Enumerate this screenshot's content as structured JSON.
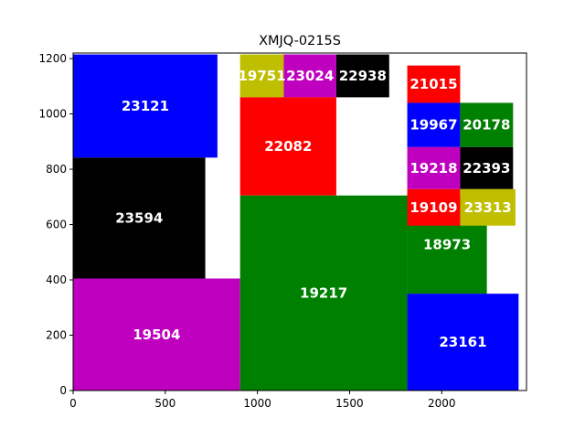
{
  "chart_data": {
    "type": "treemap",
    "title": "XMJQ-0215S",
    "xlabel": "",
    "ylabel": "",
    "xlim": [
      0,
      2460
    ],
    "ylim": [
      0,
      1220
    ],
    "xticks": [
      0,
      500,
      1000,
      1500,
      2000
    ],
    "yticks": [
      0,
      200,
      400,
      600,
      800,
      1000,
      1200
    ],
    "grid": false,
    "colors": {
      "blue": "#0000ff",
      "black": "#000000",
      "magenta": "#bf00bf",
      "green": "#008000",
      "red": "#ff0000",
      "olive": "#bfbf00"
    },
    "rects": [
      {
        "label": "23121",
        "x0": 0,
        "y0": 842,
        "x1": 783,
        "y1": 1215,
        "color": "blue"
      },
      {
        "label": "23594",
        "x0": 0,
        "y0": 405,
        "x1": 717,
        "y1": 842,
        "color": "black"
      },
      {
        "label": "19504",
        "x0": 0,
        "y0": 0,
        "x1": 906,
        "y1": 405,
        "color": "magenta"
      },
      {
        "label": "19751",
        "x0": 906,
        "y0": 1060,
        "x1": 1143,
        "y1": 1215,
        "color": "olive"
      },
      {
        "label": "23024",
        "x0": 1143,
        "y0": 1060,
        "x1": 1428,
        "y1": 1215,
        "color": "magenta"
      },
      {
        "label": "22938",
        "x0": 1428,
        "y0": 1060,
        "x1": 1715,
        "y1": 1215,
        "color": "black"
      },
      {
        "label": "22082",
        "x0": 906,
        "y0": 705,
        "x1": 1428,
        "y1": 1060,
        "color": "red"
      },
      {
        "label": "19217",
        "x0": 906,
        "y0": 0,
        "x1": 1813,
        "y1": 705,
        "color": "green"
      },
      {
        "label": "18973",
        "x0": 1813,
        "y0": 350,
        "x1": 2245,
        "y1": 705,
        "color": "green"
      },
      {
        "label": "23161",
        "x0": 1813,
        "y0": 0,
        "x1": 2417,
        "y1": 350,
        "color": "blue"
      },
      {
        "label": "21015",
        "x0": 1813,
        "y0": 1040,
        "x1": 2100,
        "y1": 1175,
        "color": "red"
      },
      {
        "label": "19967",
        "x0": 1813,
        "y0": 880,
        "x1": 2100,
        "y1": 1040,
        "color": "blue"
      },
      {
        "label": "20178",
        "x0": 2100,
        "y0": 880,
        "x1": 2387,
        "y1": 1040,
        "color": "green"
      },
      {
        "label": "19218",
        "x0": 1813,
        "y0": 728,
        "x1": 2100,
        "y1": 880,
        "color": "magenta"
      },
      {
        "label": "22393",
        "x0": 2100,
        "y0": 728,
        "x1": 2387,
        "y1": 880,
        "color": "black"
      },
      {
        "label": "19109",
        "x0": 1813,
        "y0": 596,
        "x1": 2100,
        "y1": 728,
        "color": "red"
      },
      {
        "label": "23313",
        "x0": 2100,
        "y0": 596,
        "x1": 2400,
        "y1": 728,
        "color": "olive"
      }
    ]
  }
}
